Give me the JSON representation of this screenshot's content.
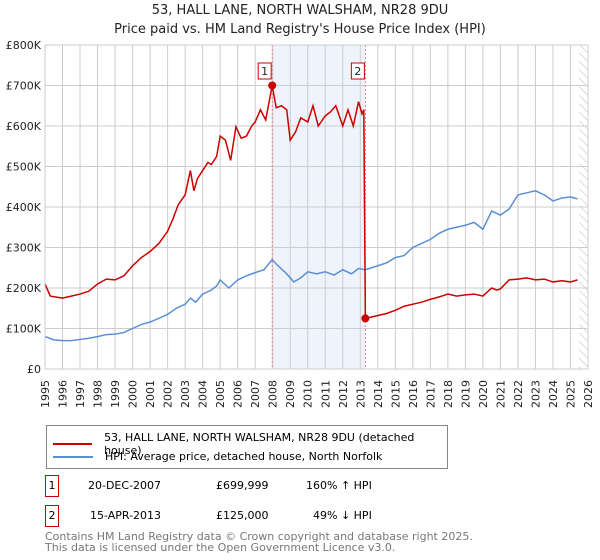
{
  "title": "53, HALL LANE, NORTH WALSHAM, NR28 9DU",
  "subtitle": "Price paid vs. HM Land Registry's House Price Index (HPI)",
  "chart_data": {
    "type": "line",
    "xlim": [
      1995,
      2026
    ],
    "ylim": [
      0,
      800000
    ],
    "yticks": [
      {
        "v": 0,
        "l": "£0"
      },
      {
        "v": 100000,
        "l": "£100K"
      },
      {
        "v": 200000,
        "l": "£200K"
      },
      {
        "v": 300000,
        "l": "£300K"
      },
      {
        "v": 400000,
        "l": "£400K"
      },
      {
        "v": 500000,
        "l": "£500K"
      },
      {
        "v": 600000,
        "l": "£600K"
      },
      {
        "v": 700000,
        "l": "£700K"
      },
      {
        "v": 800000,
        "l": "£800K"
      }
    ],
    "xticks": [
      "1995",
      "1996",
      "1997",
      "1998",
      "1999",
      "2000",
      "2001",
      "2002",
      "2003",
      "2004",
      "2005",
      "2006",
      "2007",
      "2008",
      "2009",
      "2010",
      "2011",
      "2012",
      "2013",
      "2014",
      "2015",
      "2016",
      "2017",
      "2018",
      "2019",
      "2020",
      "2021",
      "2022",
      "2023",
      "2024",
      "2025",
      "2026"
    ],
    "shaded_region": [
      2007.97,
      2013.29
    ],
    "hatched_from": 2025.5,
    "series": [
      {
        "name": "53, HALL LANE, NORTH WALSHAM, NR28 9DU (detached house)",
        "color": "#cc0000",
        "x": [
          1995,
          1995.3,
          1996,
          1996.5,
          1997,
          1997.5,
          1998,
          1998.5,
          1999,
          1999.5,
          2000,
          2000.5,
          2001,
          2001.5,
          2002,
          2002.3,
          2002.6,
          2003,
          2003.3,
          2003.5,
          2003.7,
          2004,
          2004.3,
          2004.5,
          2004.8,
          2005,
          2005.3,
          2005.6,
          2005.9,
          2006.2,
          2006.5,
          2006.8,
          2007,
          2007.3,
          2007.6,
          2007.97,
          2008.2,
          2008.5,
          2008.8,
          2009,
          2009.3,
          2009.6,
          2010,
          2010.3,
          2010.6,
          2011,
          2011.3,
          2011.6,
          2012,
          2012.3,
          2012.6,
          2012.9,
          2013.1,
          2013.2,
          2013.29
        ],
        "y": [
          210000,
          180000,
          175000,
          180000,
          185000,
          192000,
          210000,
          222000,
          220000,
          230000,
          255000,
          275000,
          290000,
          310000,
          340000,
          370000,
          405000,
          430000,
          490000,
          440000,
          470000,
          490000,
          510000,
          505000,
          525000,
          575000,
          565000,
          515000,
          598000,
          570000,
          575000,
          600000,
          610000,
          640000,
          615000,
          699999,
          645000,
          650000,
          640000,
          565000,
          585000,
          620000,
          610000,
          650000,
          600000,
          625000,
          635000,
          650000,
          600000,
          640000,
          600000,
          660000,
          630000,
          640000,
          125000
        ]
      },
      {
        "name": "53, HALL LANE, NORTH WALSHAM, NR28 9DU (detached house) after sale",
        "color": "#cc0000",
        "x": [
          2013.29,
          2013.8,
          2014.5,
          2015,
          2015.5,
          2016,
          2016.5,
          2017,
          2017.5,
          2018,
          2018.5,
          2019,
          2019.5,
          2020,
          2020.5,
          2020.8,
          2021,
          2021.5,
          2022,
          2022.5,
          2023,
          2023.5,
          2024,
          2024.5,
          2025,
          2025.4
        ],
        "y": [
          125000,
          130000,
          137000,
          145000,
          155000,
          160000,
          165000,
          172000,
          178000,
          185000,
          180000,
          183000,
          185000,
          180000,
          200000,
          195000,
          198000,
          220000,
          222000,
          225000,
          220000,
          222000,
          215000,
          218000,
          215000,
          220000
        ]
      },
      {
        "name": "HPI: Average price, detached house, North Norfolk",
        "color": "#5b8fd4",
        "x": [
          1995,
          1995.5,
          1996,
          1996.5,
          1997,
          1997.5,
          1998,
          1998.5,
          1999,
          1999.5,
          2000,
          2000.5,
          2001,
          2001.5,
          2002,
          2002.5,
          2003,
          2003.3,
          2003.6,
          2004,
          2004.5,
          2004.8,
          2005,
          2005.5,
          2006,
          2006.5,
          2007,
          2007.5,
          2007.97,
          2008.3,
          2008.8,
          2009.2,
          2009.6,
          2010,
          2010.5,
          2011,
          2011.5,
          2012,
          2012.5,
          2012.9,
          2013.29,
          2014,
          2014.5,
          2015,
          2015.5,
          2016,
          2016.5,
          2017,
          2017.5,
          2018,
          2018.5,
          2019,
          2019.5,
          2020,
          2020.5,
          2021,
          2021.5,
          2022,
          2022.5,
          2023,
          2023.5,
          2024,
          2024.5,
          2025,
          2025.4
        ],
        "y": [
          80000,
          72000,
          70000,
          70000,
          73000,
          76000,
          80000,
          85000,
          86000,
          90000,
          100000,
          110000,
          116000,
          125000,
          135000,
          150000,
          160000,
          175000,
          165000,
          185000,
          195000,
          205000,
          220000,
          200000,
          220000,
          230000,
          238000,
          245000,
          270000,
          255000,
          235000,
          215000,
          225000,
          240000,
          235000,
          240000,
          232000,
          245000,
          235000,
          248000,
          245000,
          255000,
          262000,
          275000,
          280000,
          300000,
          310000,
          320000,
          335000,
          345000,
          350000,
          355000,
          362000,
          345000,
          390000,
          380000,
          395000,
          430000,
          435000,
          440000,
          430000,
          415000,
          422000,
          425000,
          420000
        ]
      }
    ],
    "markers": [
      {
        "n": "1",
        "x": 2007.97,
        "y": 699999
      },
      {
        "n": "2",
        "x": 2013.29,
        "y": 125000
      }
    ]
  },
  "legend": {
    "red": "53, HALL LANE, NORTH WALSHAM, NR28 9DU (detached house)",
    "blue": "HPI: Average price, detached house, North Norfolk"
  },
  "transactions": [
    {
      "n": "1",
      "date": "20-DEC-2007",
      "price": "£699,999",
      "hpi": "160% ↑ HPI"
    },
    {
      "n": "2",
      "date": "15-APR-2013",
      "price": "£125,000",
      "hpi": "49% ↓ HPI"
    }
  ],
  "footer": {
    "line1": "Contains HM Land Registry data © Crown copyright and database right 2025.",
    "line2": "This data is licensed under the Open Government Licence v3.0."
  }
}
